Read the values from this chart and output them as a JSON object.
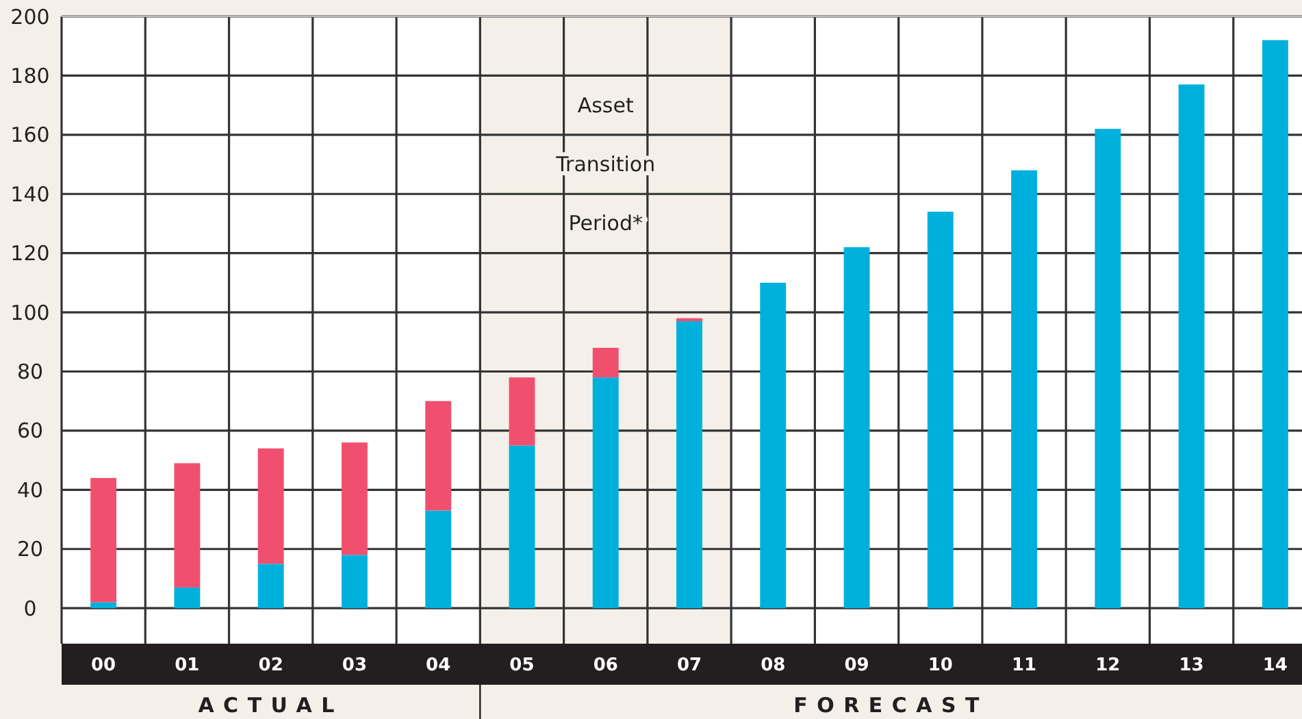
{
  "chart_data": {
    "type": "bar",
    "stacked": true,
    "categories": [
      "00",
      "01",
      "02",
      "03",
      "04",
      "05",
      "06",
      "07",
      "08",
      "09",
      "10",
      "11",
      "12",
      "13",
      "14"
    ],
    "series": [
      {
        "color": "#00b0dc",
        "values": [
          2,
          7,
          15,
          18,
          33,
          55,
          78,
          97,
          110,
          122,
          134,
          148,
          162,
          177,
          192
        ]
      },
      {
        "color": "#f0506e",
        "values": [
          42,
          42,
          39,
          38,
          37,
          23,
          10,
          1,
          null,
          null,
          null,
          null,
          null,
          null,
          null
        ]
      }
    ],
    "ylim": [
      -12,
      200
    ],
    "yticks": [
      0,
      20,
      40,
      60,
      80,
      100,
      120,
      140,
      160,
      180,
      200
    ],
    "grid": true,
    "bands": [
      {
        "axis": "x",
        "from": "05",
        "to": "07",
        "label": "Asset Transition Period*",
        "color": "#f4f0e9"
      }
    ],
    "annotations": [
      "ACTUAL",
      "FORECAST"
    ]
  }
}
